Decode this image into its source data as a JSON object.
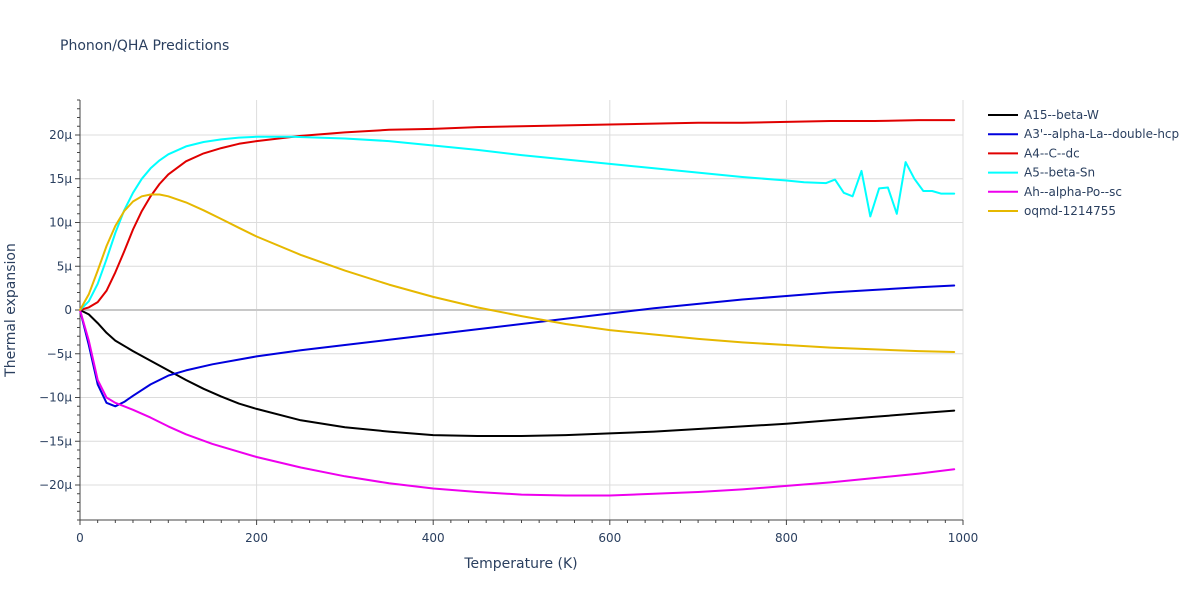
{
  "chart_data": {
    "type": "line",
    "title": "Phonon/QHA Predictions",
    "xlabel": "Temperature (K)",
    "ylabel": "Thermal expansion",
    "xlim": [
      0,
      1000
    ],
    "ylim": [
      -24,
      24
    ],
    "xticks": [
      0,
      200,
      400,
      600,
      800,
      1000
    ],
    "xtick_labels": [
      "0",
      "200",
      "400",
      "600",
      "800",
      "1000"
    ],
    "yticks": [
      -20,
      -15,
      -10,
      -5,
      0,
      5,
      10,
      15,
      20
    ],
    "ytick_labels": [
      "−20μ",
      "−15μ",
      "−10μ",
      "−5μ",
      "0",
      "5μ",
      "10μ",
      "15μ",
      "20μ"
    ],
    "grid": true,
    "legend_position": "right",
    "series": [
      {
        "name": "A15--beta-W",
        "color": "#000000",
        "x": [
          0,
          10,
          20,
          30,
          40,
          60,
          80,
          100,
          120,
          140,
          160,
          180,
          200,
          250,
          300,
          350,
          400,
          450,
          500,
          550,
          600,
          650,
          700,
          750,
          800,
          850,
          900,
          950,
          990
        ],
        "y": [
          0,
          -0.5,
          -1.5,
          -2.6,
          -3.5,
          -4.7,
          -5.8,
          -6.9,
          -8.0,
          -9.0,
          -9.9,
          -10.7,
          -11.3,
          -12.6,
          -13.4,
          -13.9,
          -14.3,
          -14.4,
          -14.4,
          -14.3,
          -14.1,
          -13.9,
          -13.6,
          -13.3,
          -13.0,
          -12.6,
          -12.2,
          -11.8,
          -11.5
        ]
      },
      {
        "name": "A3'--alpha-La--double-hcp",
        "color": "#0000dd",
        "x": [
          0,
          10,
          20,
          30,
          40,
          50,
          60,
          80,
          100,
          120,
          150,
          200,
          250,
          300,
          350,
          400,
          450,
          500,
          550,
          600,
          650,
          700,
          750,
          800,
          850,
          900,
          950,
          990
        ],
        "y": [
          0,
          -4,
          -8.5,
          -10.6,
          -11.0,
          -10.5,
          -9.8,
          -8.5,
          -7.5,
          -6.9,
          -6.2,
          -5.3,
          -4.6,
          -4.0,
          -3.4,
          -2.8,
          -2.2,
          -1.6,
          -1.0,
          -0.4,
          0.2,
          0.7,
          1.2,
          1.6,
          2.0,
          2.3,
          2.6,
          2.8
        ]
      },
      {
        "name": "A4--C--dc",
        "color": "#e00000",
        "x": [
          0,
          10,
          20,
          30,
          40,
          50,
          60,
          70,
          80,
          90,
          100,
          120,
          140,
          160,
          180,
          200,
          250,
          300,
          350,
          400,
          450,
          500,
          550,
          600,
          650,
          700,
          750,
          800,
          850,
          900,
          950,
          990
        ],
        "y": [
          0,
          0.3,
          0.9,
          2.2,
          4.3,
          6.7,
          9.2,
          11.3,
          13.0,
          14.4,
          15.5,
          17.0,
          17.9,
          18.5,
          19.0,
          19.3,
          19.9,
          20.3,
          20.6,
          20.7,
          20.9,
          21.0,
          21.1,
          21.2,
          21.3,
          21.4,
          21.4,
          21.5,
          21.6,
          21.6,
          21.7,
          21.7
        ]
      },
      {
        "name": "A5--beta-Sn",
        "color": "#00ffff",
        "x": [
          0,
          10,
          20,
          30,
          40,
          50,
          60,
          70,
          80,
          90,
          100,
          120,
          140,
          160,
          180,
          200,
          240,
          300,
          350,
          400,
          450,
          500,
          550,
          600,
          650,
          700,
          750,
          800,
          820,
          845,
          855,
          865,
          875,
          885,
          895,
          905,
          915,
          925,
          935,
          945,
          955,
          965,
          975,
          985,
          990
        ],
        "y": [
          0,
          1.0,
          3.0,
          5.8,
          8.8,
          11.4,
          13.4,
          15.0,
          16.2,
          17.1,
          17.8,
          18.7,
          19.2,
          19.5,
          19.7,
          19.8,
          19.8,
          19.6,
          19.3,
          18.8,
          18.3,
          17.7,
          17.2,
          16.7,
          16.2,
          15.7,
          15.2,
          14.8,
          14.6,
          14.5,
          14.9,
          13.4,
          13.0,
          15.9,
          10.7,
          13.9,
          14.0,
          11.0,
          16.9,
          15.0,
          13.6,
          13.6,
          13.3,
          13.3,
          13.3
        ]
      },
      {
        "name": "Ah--alpha-Po--sc",
        "color": "#ee00ee",
        "x": [
          0,
          10,
          20,
          30,
          40,
          60,
          80,
          100,
          120,
          150,
          200,
          250,
          300,
          350,
          400,
          450,
          500,
          550,
          600,
          650,
          700,
          750,
          800,
          850,
          900,
          950,
          990
        ],
        "y": [
          0,
          -3.5,
          -8.0,
          -10.0,
          -10.6,
          -11.4,
          -12.3,
          -13.3,
          -14.2,
          -15.3,
          -16.8,
          -18.0,
          -19.0,
          -19.8,
          -20.4,
          -20.8,
          -21.1,
          -21.2,
          -21.2,
          -21.0,
          -20.8,
          -20.5,
          -20.1,
          -19.7,
          -19.2,
          -18.7,
          -18.2
        ]
      },
      {
        "name": "oqmd-1214755",
        "color": "#e6b800",
        "x": [
          0,
          10,
          20,
          30,
          40,
          50,
          60,
          70,
          80,
          90,
          100,
          120,
          140,
          160,
          180,
          200,
          250,
          300,
          350,
          400,
          450,
          500,
          550,
          600,
          650,
          700,
          750,
          800,
          850,
          900,
          950,
          990
        ],
        "y": [
          0,
          1.8,
          4.5,
          7.3,
          9.6,
          11.3,
          12.4,
          13.0,
          13.2,
          13.2,
          13.0,
          12.3,
          11.4,
          10.4,
          9.4,
          8.4,
          6.3,
          4.5,
          2.9,
          1.5,
          0.3,
          -0.7,
          -1.6,
          -2.3,
          -2.8,
          -3.3,
          -3.7,
          -4.0,
          -4.3,
          -4.5,
          -4.7,
          -4.8
        ]
      }
    ]
  }
}
